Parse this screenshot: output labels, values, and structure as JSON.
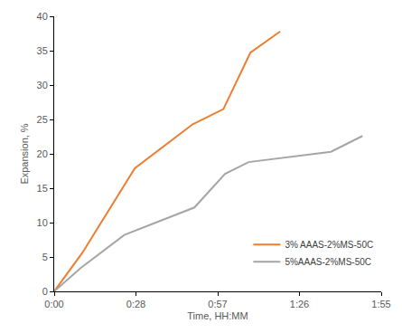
{
  "chart_data": {
    "type": "line",
    "x_label": "Time, HH:MM",
    "y_label": "Expansion, %",
    "series": [
      {
        "name": "3% AAAS-2%MS-50C",
        "color": "#ed7d31",
        "x": [
          0,
          9.9,
          28.4,
          48.8,
          59.6,
          69.1,
          79.6
        ],
        "values": [
          0,
          5.6,
          17.9,
          24.3,
          26.5,
          34.7,
          37.8
        ]
      },
      {
        "name": "5%AAAS-2%MS-50C",
        "color": "#a5a5a5",
        "x": [
          0,
          9.3,
          24.7,
          49.4,
          60.2,
          68.5,
          97.5,
          108.6
        ],
        "values": [
          0,
          3.4,
          8.2,
          12.2,
          17.1,
          18.8,
          20.3,
          22.6
        ]
      }
    ],
    "xlim": [
      0,
      115.2
    ],
    "xticks": [
      {
        "value": 0,
        "label": "0:00"
      },
      {
        "value": 28.8,
        "label": "0:28"
      },
      {
        "value": 57.6,
        "label": "0:57"
      },
      {
        "value": 86.4,
        "label": "1:26"
      },
      {
        "value": 115.2,
        "label": "1:55"
      }
    ],
    "ylim": [
      0,
      40
    ],
    "yticks": [
      0,
      5,
      10,
      15,
      20,
      25,
      30,
      35,
      40
    ],
    "grid": false,
    "legend": "lower right"
  }
}
